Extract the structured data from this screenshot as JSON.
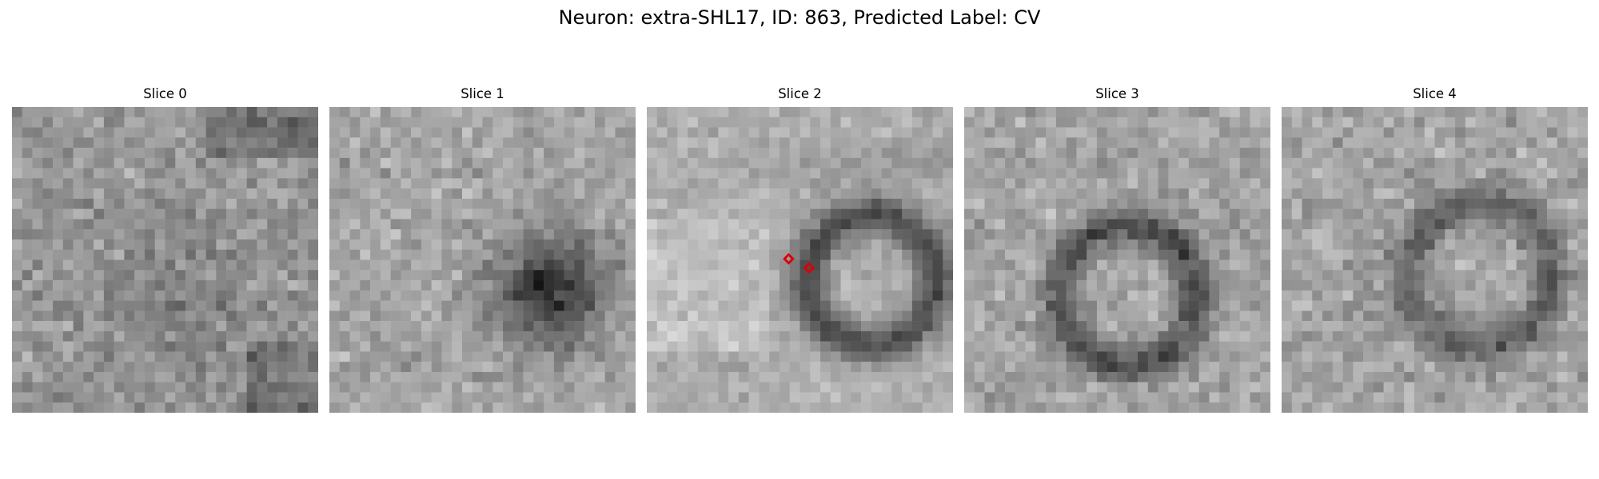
{
  "figure": {
    "title": "Neuron: extra-SHL17, ID: 863, Predicted Label: CV"
  },
  "slices": [
    {
      "title": "Slice 0",
      "image": "grayscale-noise-texture",
      "feature": "faint-dark-cloud"
    },
    {
      "title": "Slice 1",
      "image": "grayscale-noise-texture",
      "feature": "dark-filled-blob-right"
    },
    {
      "title": "Slice 2",
      "image": "grayscale-noise-texture",
      "feature": "dark-ring-right",
      "markers": 2
    },
    {
      "title": "Slice 3",
      "image": "grayscale-noise-texture",
      "feature": "dark-ring-center"
    },
    {
      "title": "Slice 4",
      "image": "grayscale-noise-texture",
      "feature": "faint-dark-ring"
    }
  ],
  "colors": {
    "marker": "#dd0000",
    "background": "#ffffff"
  }
}
